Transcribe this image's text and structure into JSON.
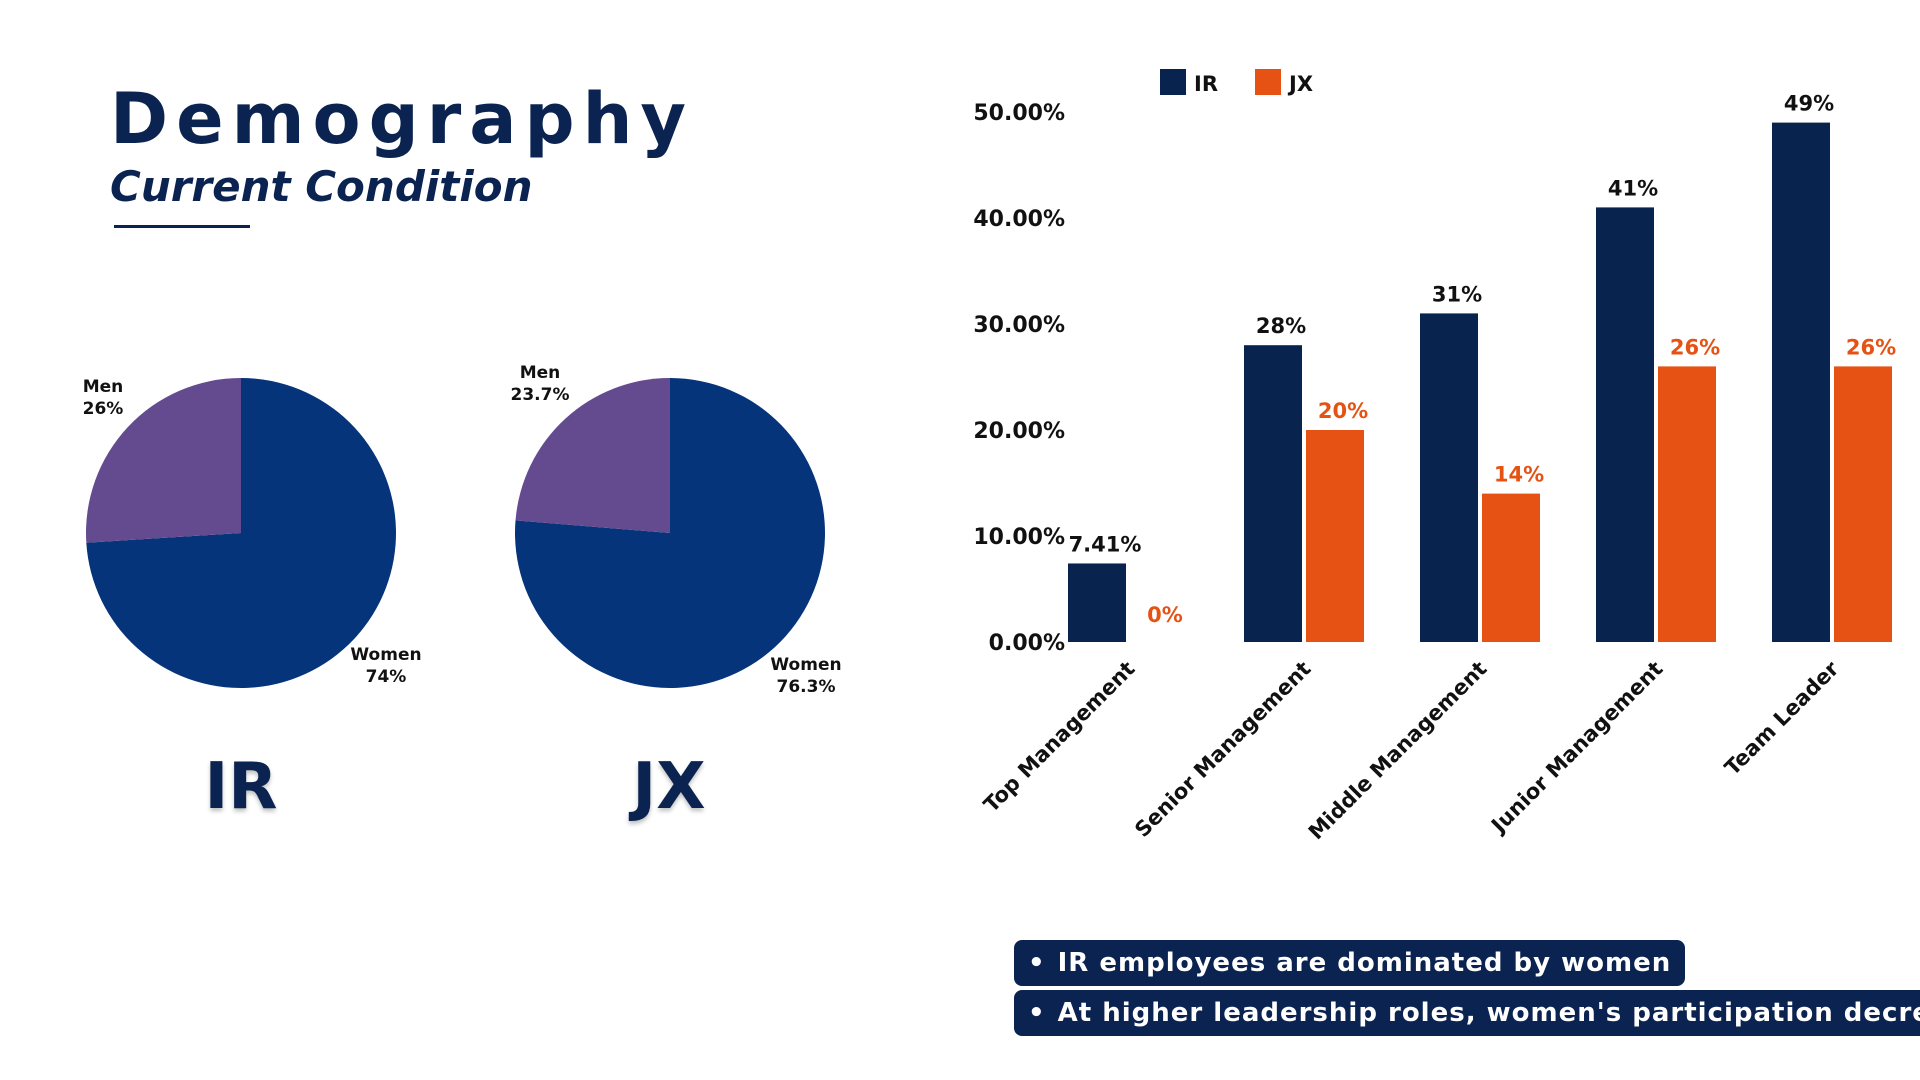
{
  "header": {
    "title": "Demography",
    "subtitle": "Current Condition"
  },
  "pies": [
    {
      "name": "IR",
      "slices": [
        {
          "label": "Men",
          "value_label": "26%",
          "value": 26,
          "color": "#644a8f"
        },
        {
          "label": "Women",
          "value_label": "74%",
          "value": 74,
          "color": "#06347a"
        }
      ]
    },
    {
      "name": "JX",
      "slices": [
        {
          "label": "Men",
          "value_label": "23.7%",
          "value": 23.7,
          "color": "#644a8f"
        },
        {
          "label": "Women",
          "value_label": "76.3%",
          "value": 76.3,
          "color": "#06347a"
        }
      ]
    }
  ],
  "chart_data": [
    {
      "type": "pie",
      "title": "IR",
      "categories": [
        "Men",
        "Women"
      ],
      "values": [
        26,
        74
      ]
    },
    {
      "type": "pie",
      "title": "JX",
      "categories": [
        "Men",
        "Women"
      ],
      "values": [
        23.7,
        76.3
      ]
    },
    {
      "type": "bar",
      "categories": [
        "Top Management",
        "Senior Management",
        "Middle Management",
        "Junior Management",
        "Team Leader"
      ],
      "series": [
        {
          "name": "IR",
          "values": [
            7.41,
            28,
            31,
            41,
            49
          ],
          "labels": [
            "7.41%",
            "28%",
            "31%",
            "41%",
            "49%"
          ],
          "color": "#08234d"
        },
        {
          "name": "JX",
          "values": [
            0,
            20,
            14,
            26,
            26
          ],
          "labels": [
            "0%",
            "20%",
            "14%",
            "26%",
            "26%"
          ],
          "color": "#e55214"
        }
      ],
      "ylim": [
        0,
        50
      ],
      "yticks": [
        "0.00%",
        "10.00%",
        "20.00%",
        "30.00%",
        "40.00%",
        "50.00%"
      ],
      "legend": "top-center",
      "grid": false
    }
  ],
  "notes": [
    "IR employees are dominated by women",
    "At higher leadership roles, women's participation decreases"
  ],
  "colors": {
    "navy": "#0b2350",
    "bar_navy": "#08234d",
    "orange": "#e55214",
    "pie_women": "#06347a",
    "pie_men": "#644a8f"
  }
}
